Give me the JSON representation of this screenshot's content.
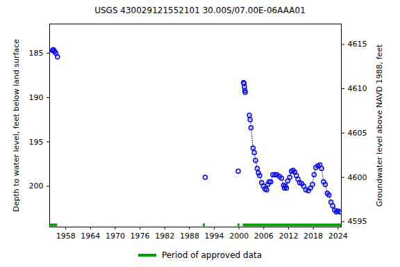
{
  "chart_data": {
    "type": "line",
    "title": "USGS 430029121552101 30.00S/07.00E-06AAA01",
    "y_label": "Depth to water level, feet below land surface",
    "y2_label": "Groundwater level above NAVD 1988, feet",
    "x": [
      1954.8,
      1955.0,
      1955.3,
      1955.6,
      1956.0,
      1991.8,
      1999.8,
      2001.1,
      2001.2,
      2001.3,
      2001.4,
      2001.5,
      2002.5,
      2002.7,
      2002.9,
      2003.4,
      2003.7,
      2004.0,
      2004.4,
      2004.7,
      2005.0,
      2005.5,
      2005.9,
      2006.3,
      2006.7,
      2007.0,
      2007.3,
      2007.7,
      2008.2,
      2008.7,
      2009.2,
      2009.8,
      2010.3,
      2010.8,
      2011.0,
      2011.2,
      2011.5,
      2011.8,
      2012.3,
      2012.7,
      2013.1,
      2013.5,
      2013.9,
      2014.3,
      2014.7,
      2015.2,
      2015.7,
      2016.2,
      2016.8,
      2017.3,
      2017.8,
      2018.2,
      2018.6,
      2019.1,
      2019.6,
      2020.0,
      2020.5,
      2020.9,
      2021.4,
      2021.8,
      2022.3,
      2022.7,
      2023.2,
      2023.6,
      2024.0,
      2024.5
    ],
    "values": [
      184.7,
      184.6,
      184.8,
      185.0,
      185.4,
      199.0,
      198.3,
      188.3,
      188.4,
      188.8,
      189.2,
      189.4,
      192.0,
      192.5,
      193.4,
      195.7,
      196.2,
      197.1,
      198.0,
      198.5,
      198.8,
      199.6,
      200.0,
      200.3,
      200.4,
      199.8,
      199.5,
      199.5,
      198.7,
      198.7,
      198.7,
      198.9,
      199.1,
      199.9,
      200.2,
      200.0,
      200.2,
      199.4,
      199.0,
      198.3,
      198.2,
      198.4,
      198.8,
      199.2,
      199.6,
      199.7,
      200.0,
      200.4,
      200.5,
      200.2,
      199.8,
      198.7,
      197.9,
      197.7,
      197.6,
      198.0,
      199.5,
      199.8,
      200.8,
      201.0,
      201.8,
      202.2,
      202.7,
      202.9,
      202.8,
      202.9
    ],
    "color": "#0000ff",
    "marker": "circle",
    "line_style": "dotted",
    "xlim": [
      1954.1,
      2024.8
    ],
    "xticks": [
      1958,
      1964,
      1970,
      1976,
      1982,
      1988,
      1994,
      2000,
      2006,
      2012,
      2018,
      2024
    ],
    "ylim": [
      181.7,
      204.6
    ],
    "yticks": [
      185,
      190,
      195,
      200
    ],
    "y2lim": [
      4617.3,
      4594.4
    ],
    "y2ticks": [
      4595,
      4600,
      4605,
      4610,
      4615
    ],
    "approved_periods": {
      "name": "Period of approved data",
      "color": "#00a000",
      "ranges": [
        [
          1954.3,
          1956.0
        ],
        [
          1991.3,
          1991.8
        ],
        [
          1999.7,
          2000.2
        ],
        [
          2001.0,
          2024.8
        ]
      ]
    },
    "legend": "bottom",
    "grid": false
  }
}
